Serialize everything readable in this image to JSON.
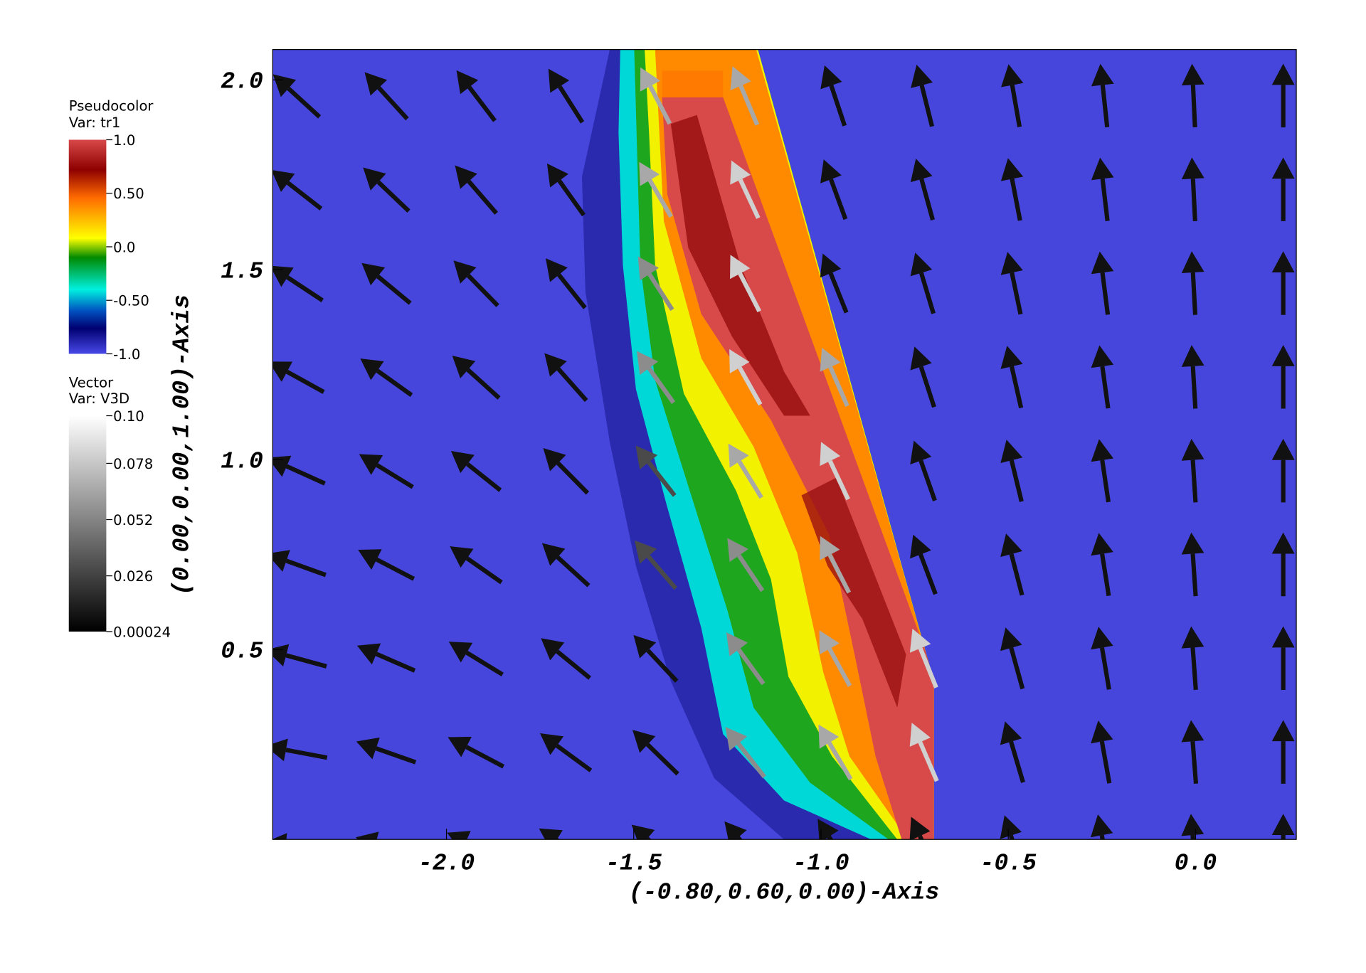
{
  "chart_data": {
    "type": "pseudocolor-vector",
    "x_label": "(-0.80,0.60,0.00)-Axis",
    "y_label": "(0.00,0.00,1.00)-Axis",
    "xlim": [
      -2.464,
      0.269
    ],
    "ylim": [
      0,
      2.08
    ],
    "xticks": [
      {
        "value": -2,
        "label": "-2.0"
      },
      -1.5,
      {
        "value": -1,
        "label": "-1.0"
      },
      -0.5,
      {
        "value": 0,
        "label": "0.0"
      }
    ],
    "yticks": [
      {
        "value": 2,
        "label": "2.0"
      },
      1.5,
      {
        "value": 1,
        "label": "1.0"
      },
      0.5
    ],
    "legends": [
      {
        "title": "Pseudocolor",
        "variable": "Var: tr1",
        "ticks": [
          {
            "value": 1,
            "label": "1.0"
          },
          {
            "value": 0.5,
            "label": "0.50"
          },
          {
            "value": 0,
            "label": "0.0"
          },
          {
            "value": -0.5,
            "label": "-0.50"
          },
          {
            "value": -1,
            "label": "-1.0"
          }
        ]
      },
      {
        "title": "Vector",
        "variable": "Var: V3D",
        "ticks": [
          {
            "value": 0.1,
            "label": "0.10"
          },
          0.078,
          0.052,
          0.026,
          0.00024
        ]
      }
    ]
  }
}
